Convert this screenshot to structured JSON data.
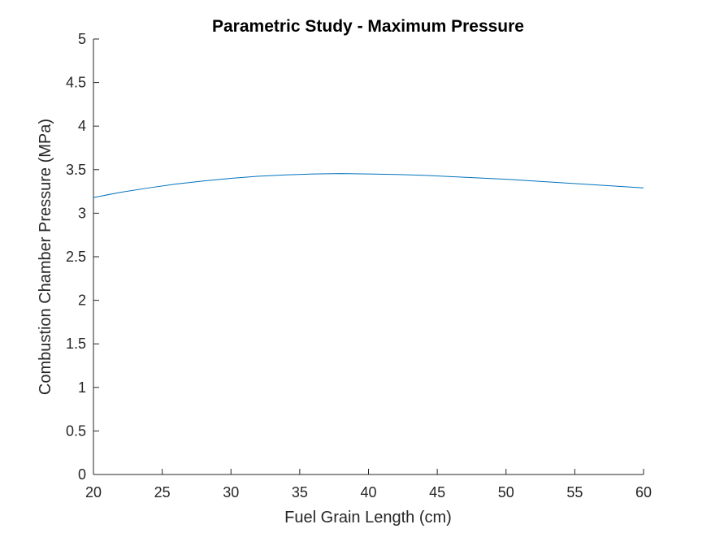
{
  "chart_data": {
    "type": "line",
    "title": "Parametric Study - Maximum Pressure",
    "xlabel": "Fuel Grain Length (cm)",
    "ylabel": "Combustion Chamber Pressure (MPa)",
    "xlim": [
      20,
      60
    ],
    "ylim": [
      0,
      5
    ],
    "xticks": [
      20,
      25,
      30,
      35,
      40,
      45,
      50,
      55,
      60
    ],
    "xtick_labels": [
      "20",
      "25",
      "30",
      "35",
      "40",
      "45",
      "50",
      "55",
      "60"
    ],
    "yticks": [
      0,
      0.5,
      1,
      1.5,
      2,
      2.5,
      3,
      3.5,
      4,
      4.5,
      5
    ],
    "ytick_labels": [
      "0",
      "0.5",
      "1",
      "1.5",
      "2",
      "2.5",
      "3",
      "3.5",
      "4",
      "4.5",
      "5"
    ],
    "grid": false,
    "legend": "none",
    "series": [
      {
        "color": "#0072BD",
        "x": [
          20,
          22,
          24,
          26,
          28,
          30,
          32,
          34,
          36,
          38,
          40,
          42,
          44,
          46,
          48,
          50,
          52,
          54,
          56,
          58,
          60
        ],
        "y": [
          3.18,
          3.24,
          3.29,
          3.335,
          3.37,
          3.4,
          3.425,
          3.44,
          3.45,
          3.455,
          3.45,
          3.445,
          3.435,
          3.42,
          3.405,
          3.39,
          3.37,
          3.35,
          3.33,
          3.31,
          3.29
        ]
      }
    ]
  }
}
